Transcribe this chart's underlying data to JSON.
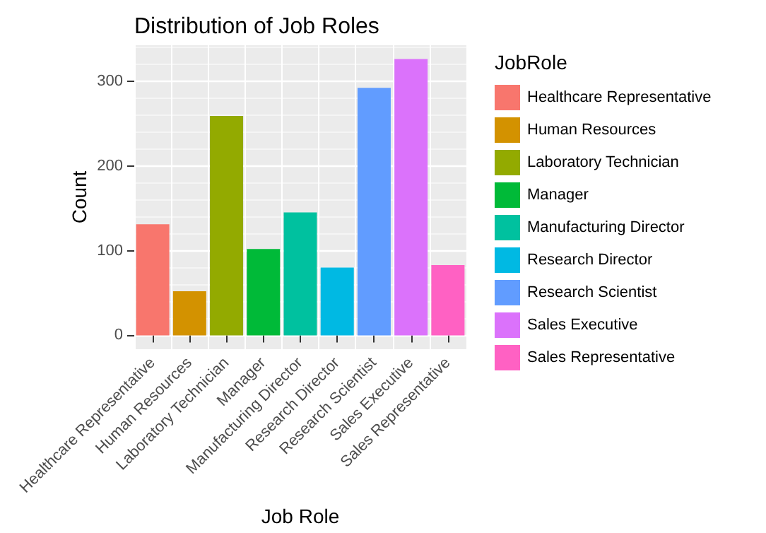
{
  "chart_data": {
    "type": "bar",
    "title": "Distribution of Job Roles",
    "xlabel": "Job Role",
    "ylabel": "Count",
    "legend_title": "JobRole",
    "categories": [
      "Healthcare Representative",
      "Human Resources",
      "Laboratory Technician",
      "Manager",
      "Manufacturing Director",
      "Research Director",
      "Research Scientist",
      "Sales Executive",
      "Sales Representative"
    ],
    "stacked": true,
    "series": [
      {
        "name": "Healthcare Representative",
        "color": "#f8766d",
        "values": [
          131,
          null,
          null,
          null,
          null,
          null,
          null,
          null,
          null
        ]
      },
      {
        "name": "Human Resources",
        "color": "#d39200",
        "values": [
          null,
          52,
          null,
          null,
          null,
          null,
          null,
          null,
          null
        ]
      },
      {
        "name": "Laboratory Technician",
        "color": "#93aa00",
        "values": [
          null,
          null,
          259,
          null,
          null,
          null,
          null,
          null,
          null
        ]
      },
      {
        "name": "Manager",
        "color": "#00ba38",
        "values": [
          null,
          null,
          null,
          102,
          null,
          null,
          null,
          null,
          null
        ]
      },
      {
        "name": "Manufacturing Director",
        "color": "#00c19f",
        "values": [
          null,
          null,
          null,
          null,
          145,
          null,
          null,
          null,
          null
        ]
      },
      {
        "name": "Research Director",
        "color": "#00b9e3",
        "values": [
          null,
          null,
          null,
          null,
          null,
          80,
          null,
          null,
          null
        ]
      },
      {
        "name": "Research Scientist",
        "color": "#619cff",
        "values": [
          null,
          null,
          null,
          null,
          null,
          null,
          292,
          null,
          null
        ]
      },
      {
        "name": "Sales Executive",
        "color": "#db72fb",
        "values": [
          null,
          null,
          null,
          null,
          null,
          null,
          null,
          326,
          null
        ]
      },
      {
        "name": "Sales Representative",
        "color": "#ff61c3",
        "values": [
          null,
          null,
          null,
          null,
          null,
          null,
          null,
          null,
          83
        ]
      }
    ],
    "ylim": [
      -16.3,
      342.3
    ],
    "yticks": [
      0,
      100,
      200,
      300
    ],
    "grid": true,
    "legend": "right"
  }
}
